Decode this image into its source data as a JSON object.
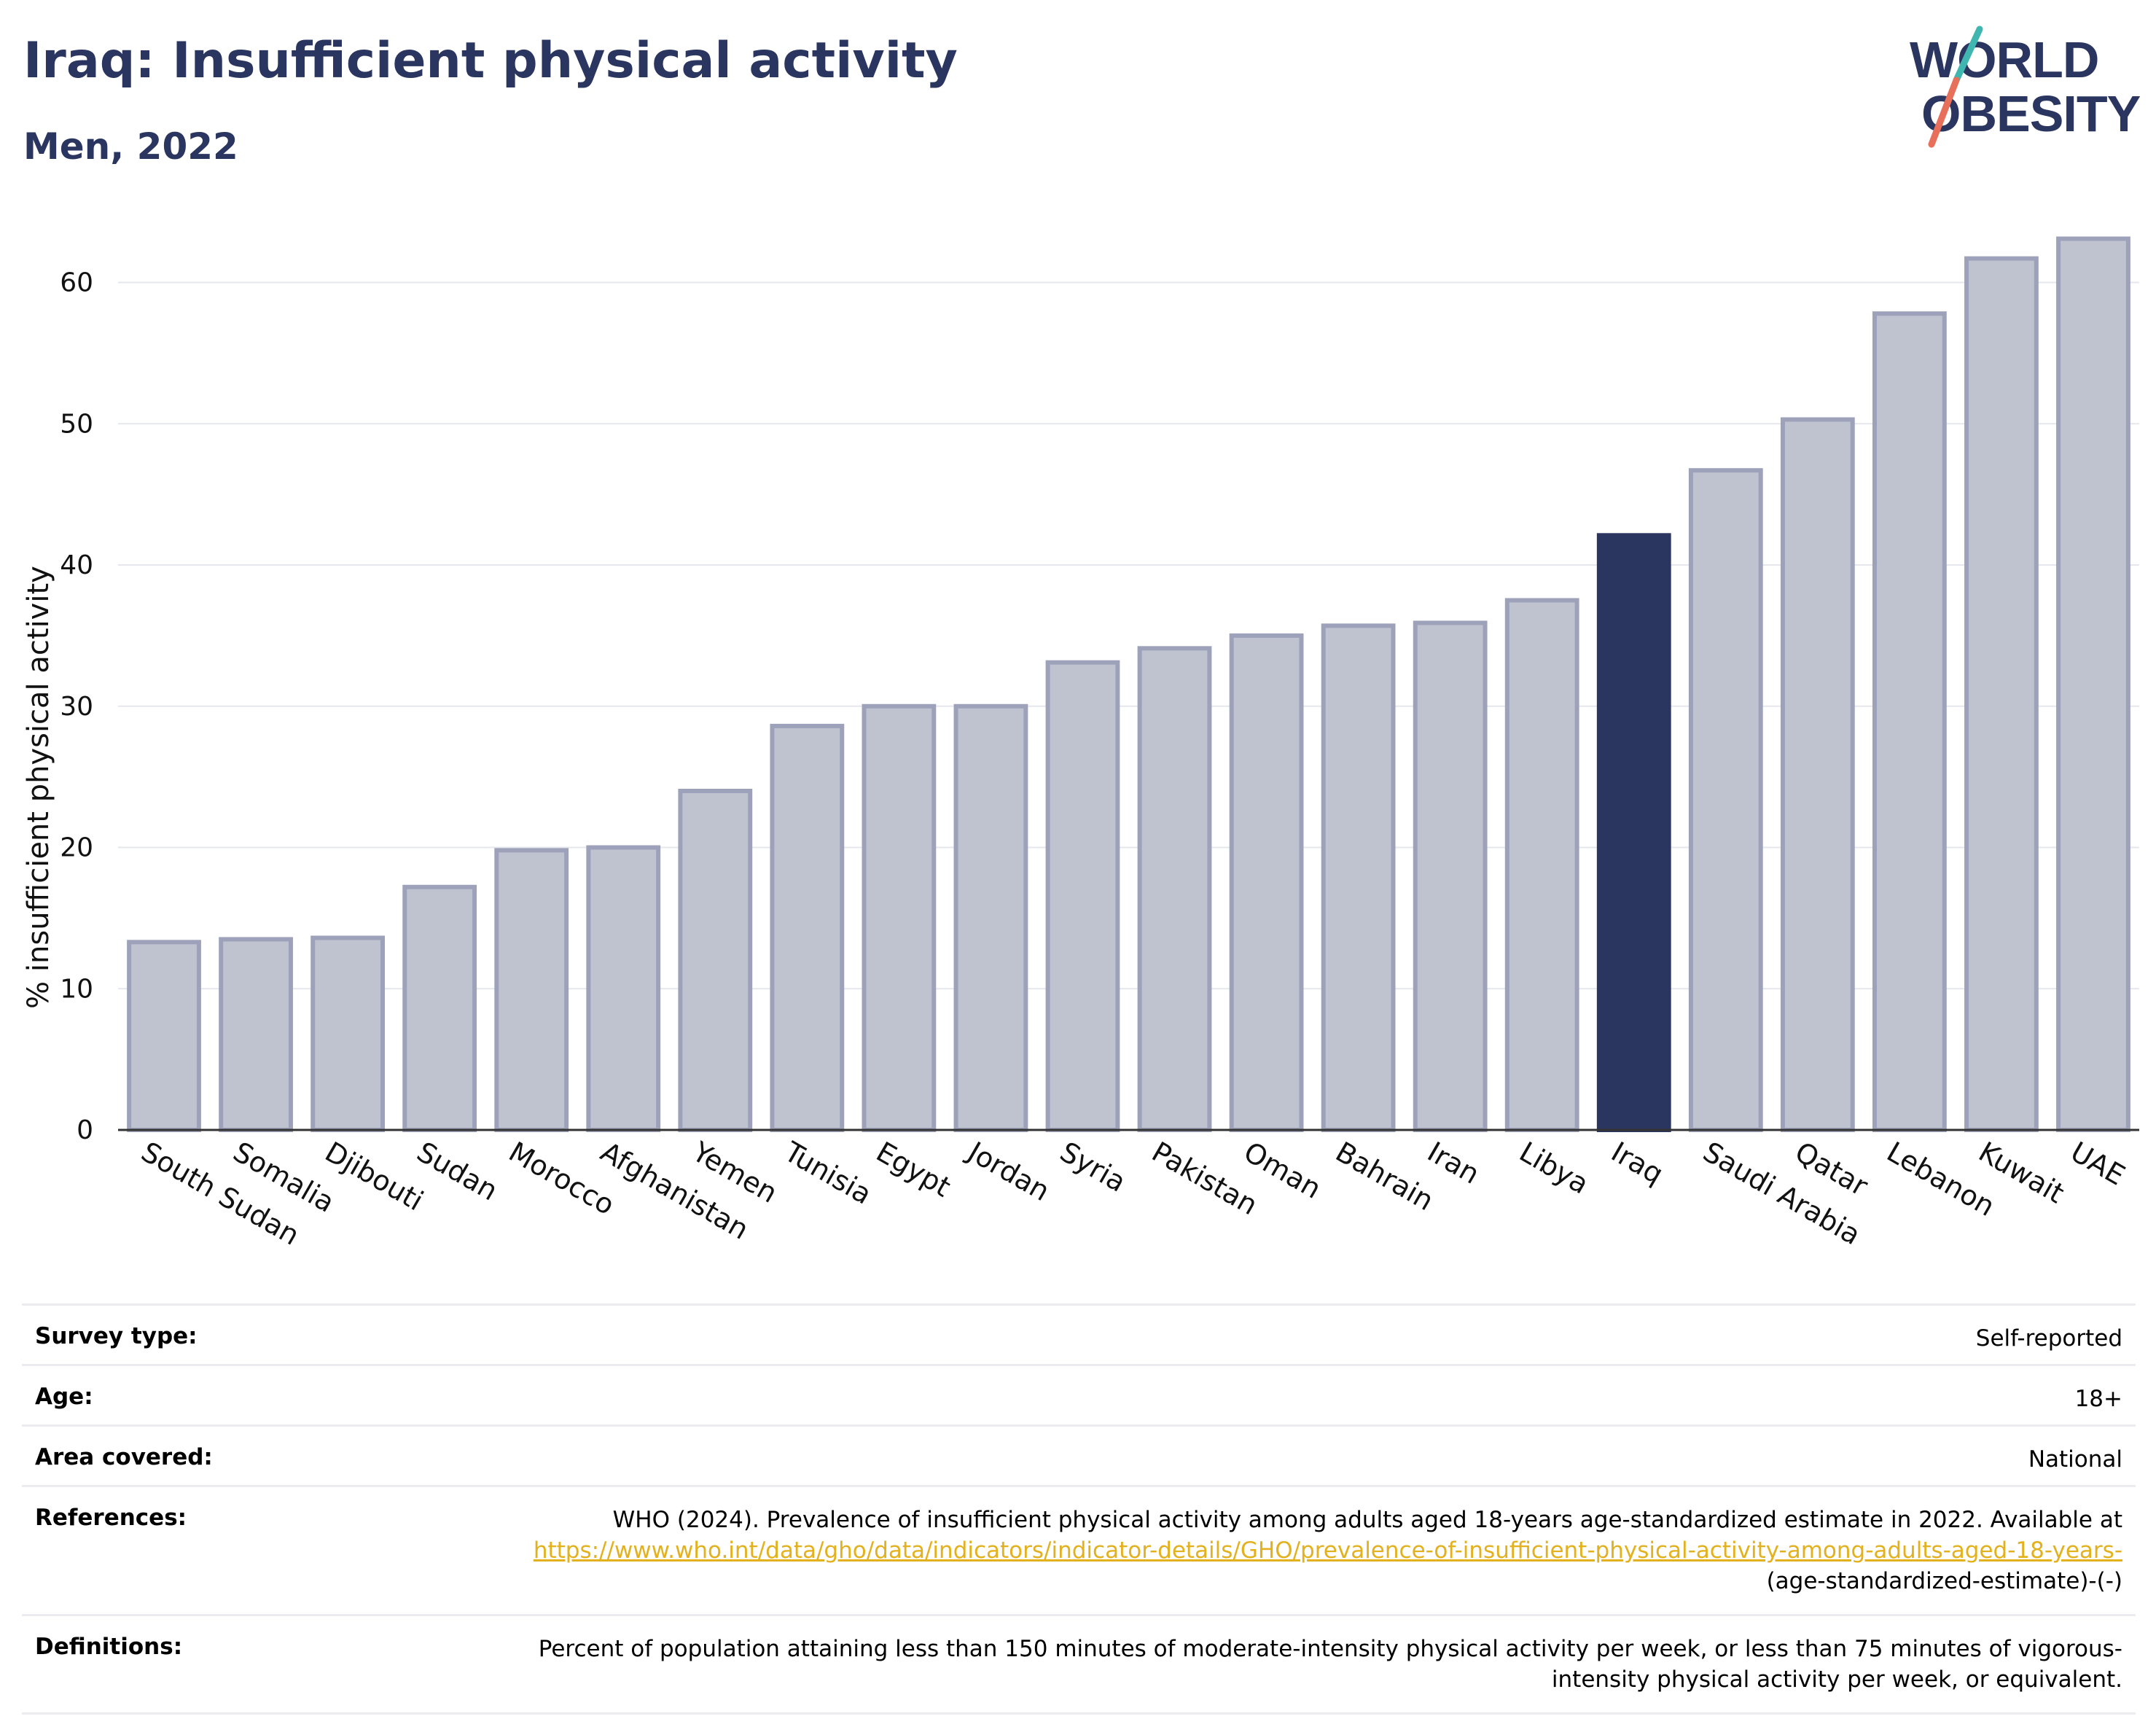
{
  "header": {
    "title": "Iraq: Insufficient physical activity",
    "subtitle": "Men, 2022"
  },
  "logo": {
    "line1": "WORLD",
    "line2": "OBESITY",
    "colors": {
      "text": "#2a3560",
      "slash_top": "#3fb6b0",
      "slash_bottom": "#e8705a"
    }
  },
  "chart_data": {
    "type": "bar",
    "title": "Iraq: Insufficient physical activity",
    "subtitle": "Men, 2022",
    "xlabel": "",
    "ylabel": "% insufficient physical activity",
    "ylim": [
      0,
      64
    ],
    "yticks": [
      0,
      10,
      20,
      30,
      40,
      50,
      60
    ],
    "grid": true,
    "highlight": "Iraq",
    "colors": {
      "default_fill": "#bfc2cf",
      "default_stroke": "#9da2ba",
      "highlight_fill": "#2a3560"
    },
    "categories": [
      "South Sudan",
      "Somalia",
      "Djibouti",
      "Sudan",
      "Morocco",
      "Afghanistan",
      "Yemen",
      "Tunisia",
      "Egypt",
      "Jordan",
      "Syria",
      "Pakistan",
      "Oman",
      "Bahrain",
      "Iran",
      "Libya",
      "Iraq",
      "Saudi Arabia",
      "Qatar",
      "Lebanon",
      "Kuwait",
      "UAE"
    ],
    "values": [
      13.3,
      13.5,
      13.6,
      17.2,
      19.8,
      20.0,
      24.0,
      28.6,
      30.0,
      30.0,
      33.1,
      34.1,
      35.0,
      35.7,
      35.9,
      37.5,
      42.1,
      46.7,
      50.3,
      57.8,
      61.7,
      63.1
    ]
  },
  "info": {
    "survey_type": {
      "label": "Survey type:",
      "value": "Self-reported"
    },
    "age": {
      "label": "Age:",
      "value": "18+"
    },
    "area": {
      "label": "Area covered:",
      "value": "National"
    },
    "references": {
      "label": "References:",
      "text": "WHO (2024). Prevalence of insufficient physical activity among adults aged 18-years age-standardized estimate in 2022. Available at",
      "link": "https://www.who.int/data/gho/data/indicators/indicator-details/GHO/prevalence-of-insufficient-physical-activity-among-adults-aged-18-years-",
      "suffix": "(age-standardized-estimate)-(-)"
    },
    "definitions": {
      "label": "Definitions:",
      "value": "Percent of population attaining less than 150 minutes of moderate-intensity physical activity per week, or less than 75 minutes of vigorous-intensity physical activity per week, or equivalent."
    }
  }
}
